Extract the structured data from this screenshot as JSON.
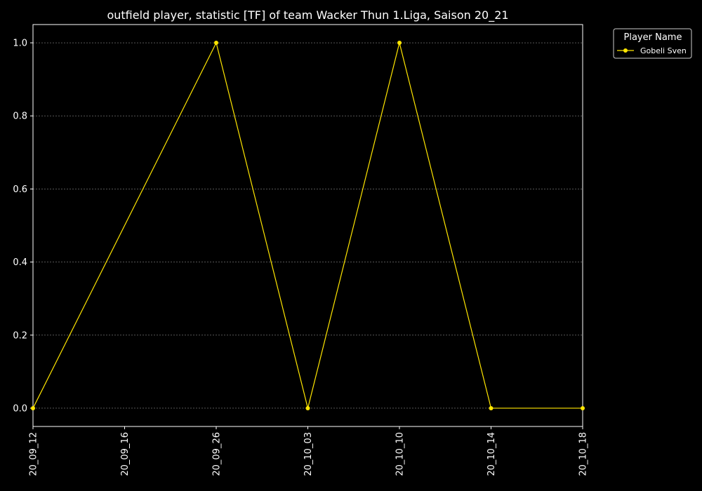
{
  "chart_data": {
    "type": "line",
    "title": "outfield player, statistic [TF] of team Wacker Thun 1.Liga, Saison 20_21",
    "xlabel": "",
    "ylabel": "",
    "x_ticks": [
      "20_09_12",
      "20_09_16",
      "20_09_26",
      "20_10_03",
      "20_10_10",
      "20_10_14",
      "20_10_18"
    ],
    "y_ticks": [
      "0.0",
      "0.2",
      "0.4",
      "0.6",
      "0.8",
      "1.0"
    ],
    "ylim": [
      -0.05,
      1.05
    ],
    "grid": "horizontal dashed",
    "legend": {
      "title": "Player Name",
      "placement": "outside top-right"
    },
    "series": [
      {
        "name": "Gobeli Sven",
        "color": "#ffe600",
        "points": [
          {
            "x": "20_09_12",
            "y": 0
          },
          {
            "x": "20_09_26",
            "y": 1
          },
          {
            "x": "20_10_03",
            "y": 0
          },
          {
            "x": "20_10_10",
            "y": 1
          },
          {
            "x": "20_10_14",
            "y": 0
          },
          {
            "x": "20_10_18",
            "y": 0
          }
        ]
      }
    ]
  }
}
